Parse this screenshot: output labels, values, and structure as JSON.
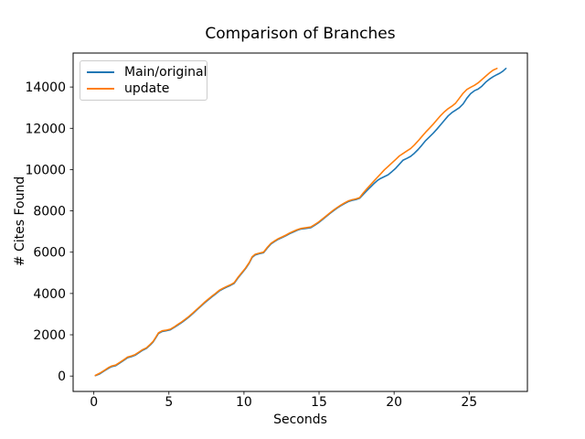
{
  "chart_data": {
    "type": "line",
    "title": "Comparison of Branches",
    "xlabel": "Seconds",
    "ylabel": "# Cites Found",
    "xlim": [
      -1.38,
      28.88
    ],
    "ylim": [
      -745,
      15645
    ],
    "xticks": [
      0,
      5,
      10,
      15,
      20,
      25
    ],
    "yticks": [
      0,
      2000,
      4000,
      6000,
      8000,
      10000,
      12000,
      14000
    ],
    "grid": false,
    "legend_position": "upper left",
    "background_color": "#ffffff",
    "spine_color": "#000000",
    "text_color": "#000000",
    "legend_border_color": "#cccccc",
    "series": [
      {
        "name": "Main/original",
        "color": "#1f77b4",
        "points": [
          [
            0.1,
            20
          ],
          [
            0.4,
            110
          ],
          [
            0.7,
            250
          ],
          [
            1.0,
            390
          ],
          [
            1.2,
            460
          ],
          [
            1.45,
            500
          ],
          [
            1.7,
            620
          ],
          [
            2.0,
            760
          ],
          [
            2.25,
            890
          ],
          [
            2.5,
            940
          ],
          [
            2.75,
            1010
          ],
          [
            3.0,
            1130
          ],
          [
            3.25,
            1250
          ],
          [
            3.5,
            1340
          ],
          [
            3.75,
            1500
          ],
          [
            3.95,
            1650
          ],
          [
            4.1,
            1820
          ],
          [
            4.3,
            2060
          ],
          [
            4.55,
            2160
          ],
          [
            4.8,
            2190
          ],
          [
            5.1,
            2240
          ],
          [
            5.35,
            2350
          ],
          [
            5.6,
            2470
          ],
          [
            5.85,
            2590
          ],
          [
            6.1,
            2730
          ],
          [
            6.35,
            2870
          ],
          [
            6.6,
            3030
          ],
          [
            6.85,
            3200
          ],
          [
            7.1,
            3360
          ],
          [
            7.35,
            3530
          ],
          [
            7.6,
            3680
          ],
          [
            7.85,
            3830
          ],
          [
            8.1,
            3970
          ],
          [
            8.35,
            4120
          ],
          [
            8.6,
            4220
          ],
          [
            8.85,
            4310
          ],
          [
            9.1,
            4390
          ],
          [
            9.35,
            4490
          ],
          [
            9.6,
            4750
          ],
          [
            9.85,
            4970
          ],
          [
            10.1,
            5200
          ],
          [
            10.35,
            5470
          ],
          [
            10.55,
            5750
          ],
          [
            10.75,
            5870
          ],
          [
            11.0,
            5920
          ],
          [
            11.3,
            5970
          ],
          [
            11.55,
            6200
          ],
          [
            11.8,
            6400
          ],
          [
            12.05,
            6520
          ],
          [
            12.3,
            6630
          ],
          [
            12.55,
            6710
          ],
          [
            12.8,
            6800
          ],
          [
            13.05,
            6900
          ],
          [
            13.3,
            6980
          ],
          [
            13.55,
            7060
          ],
          [
            13.8,
            7120
          ],
          [
            14.1,
            7150
          ],
          [
            14.45,
            7190
          ],
          [
            14.7,
            7300
          ],
          [
            14.95,
            7420
          ],
          [
            15.2,
            7560
          ],
          [
            15.45,
            7710
          ],
          [
            15.7,
            7860
          ],
          [
            15.95,
            8000
          ],
          [
            16.2,
            8130
          ],
          [
            16.45,
            8250
          ],
          [
            16.7,
            8360
          ],
          [
            16.95,
            8450
          ],
          [
            17.2,
            8510
          ],
          [
            17.45,
            8550
          ],
          [
            17.7,
            8610
          ],
          [
            17.95,
            8800
          ],
          [
            18.2,
            8990
          ],
          [
            18.45,
            9170
          ],
          [
            18.7,
            9350
          ],
          [
            18.9,
            9480
          ],
          [
            19.1,
            9570
          ],
          [
            19.35,
            9660
          ],
          [
            19.6,
            9750
          ],
          [
            19.85,
            9900
          ],
          [
            20.1,
            10060
          ],
          [
            20.35,
            10260
          ],
          [
            20.6,
            10460
          ],
          [
            20.85,
            10540
          ],
          [
            21.1,
            10640
          ],
          [
            21.35,
            10790
          ],
          [
            21.6,
            10970
          ],
          [
            21.85,
            11180
          ],
          [
            22.1,
            11400
          ],
          [
            22.35,
            11580
          ],
          [
            22.6,
            11760
          ],
          [
            22.85,
            11960
          ],
          [
            23.1,
            12170
          ],
          [
            23.35,
            12390
          ],
          [
            23.6,
            12600
          ],
          [
            23.85,
            12760
          ],
          [
            24.1,
            12880
          ],
          [
            24.35,
            13000
          ],
          [
            24.6,
            13180
          ],
          [
            24.85,
            13460
          ],
          [
            25.1,
            13680
          ],
          [
            25.35,
            13820
          ],
          [
            25.6,
            13900
          ],
          [
            25.85,
            14040
          ],
          [
            26.1,
            14230
          ],
          [
            26.35,
            14380
          ],
          [
            26.6,
            14500
          ],
          [
            26.85,
            14600
          ],
          [
            27.05,
            14670
          ],
          [
            27.25,
            14770
          ],
          [
            27.45,
            14900
          ]
        ]
      },
      {
        "name": "update",
        "color": "#ff7f0e",
        "points": [
          [
            0.1,
            30
          ],
          [
            0.4,
            140
          ],
          [
            0.7,
            280
          ],
          [
            1.0,
            420
          ],
          [
            1.2,
            490
          ],
          [
            1.45,
            530
          ],
          [
            1.7,
            650
          ],
          [
            2.0,
            790
          ],
          [
            2.25,
            920
          ],
          [
            2.5,
            970
          ],
          [
            2.75,
            1040
          ],
          [
            3.0,
            1160
          ],
          [
            3.25,
            1280
          ],
          [
            3.5,
            1370
          ],
          [
            3.75,
            1530
          ],
          [
            3.95,
            1680
          ],
          [
            4.1,
            1850
          ],
          [
            4.3,
            2090
          ],
          [
            4.55,
            2190
          ],
          [
            4.8,
            2220
          ],
          [
            5.1,
            2270
          ],
          [
            5.35,
            2380
          ],
          [
            5.6,
            2500
          ],
          [
            5.85,
            2620
          ],
          [
            6.1,
            2760
          ],
          [
            6.35,
            2900
          ],
          [
            6.6,
            3060
          ],
          [
            6.85,
            3230
          ],
          [
            7.1,
            3390
          ],
          [
            7.35,
            3560
          ],
          [
            7.6,
            3710
          ],
          [
            7.85,
            3860
          ],
          [
            8.1,
            4000
          ],
          [
            8.35,
            4150
          ],
          [
            8.6,
            4250
          ],
          [
            8.85,
            4340
          ],
          [
            9.1,
            4420
          ],
          [
            9.35,
            4520
          ],
          [
            9.6,
            4780
          ],
          [
            9.85,
            5000
          ],
          [
            10.1,
            5230
          ],
          [
            10.35,
            5500
          ],
          [
            10.55,
            5780
          ],
          [
            10.75,
            5900
          ],
          [
            11.0,
            5950
          ],
          [
            11.3,
            6000
          ],
          [
            11.55,
            6230
          ],
          [
            11.8,
            6430
          ],
          [
            12.05,
            6550
          ],
          [
            12.3,
            6660
          ],
          [
            12.55,
            6740
          ],
          [
            12.8,
            6830
          ],
          [
            13.05,
            6930
          ],
          [
            13.3,
            7010
          ],
          [
            13.55,
            7090
          ],
          [
            13.8,
            7150
          ],
          [
            14.1,
            7180
          ],
          [
            14.45,
            7220
          ],
          [
            14.7,
            7330
          ],
          [
            14.95,
            7450
          ],
          [
            15.2,
            7590
          ],
          [
            15.45,
            7740
          ],
          [
            15.7,
            7890
          ],
          [
            15.95,
            8030
          ],
          [
            16.2,
            8160
          ],
          [
            16.45,
            8280
          ],
          [
            16.7,
            8390
          ],
          [
            16.95,
            8480
          ],
          [
            17.2,
            8540
          ],
          [
            17.45,
            8580
          ],
          [
            17.7,
            8640
          ],
          [
            17.95,
            8870
          ],
          [
            18.2,
            9080
          ],
          [
            18.45,
            9280
          ],
          [
            18.65,
            9440
          ],
          [
            18.85,
            9600
          ],
          [
            19.1,
            9790
          ],
          [
            19.35,
            9990
          ],
          [
            19.6,
            10150
          ],
          [
            19.85,
            10320
          ],
          [
            20.1,
            10490
          ],
          [
            20.35,
            10660
          ],
          [
            20.6,
            10780
          ],
          [
            20.85,
            10900
          ],
          [
            21.1,
            11020
          ],
          [
            21.35,
            11190
          ],
          [
            21.6,
            11390
          ],
          [
            21.85,
            11600
          ],
          [
            22.1,
            11810
          ],
          [
            22.35,
            12000
          ],
          [
            22.6,
            12200
          ],
          [
            22.85,
            12410
          ],
          [
            23.1,
            12620
          ],
          [
            23.35,
            12800
          ],
          [
            23.6,
            12950
          ],
          [
            23.85,
            13070
          ],
          [
            24.1,
            13220
          ],
          [
            24.35,
            13460
          ],
          [
            24.6,
            13700
          ],
          [
            24.85,
            13880
          ],
          [
            25.1,
            13990
          ],
          [
            25.35,
            14080
          ],
          [
            25.6,
            14200
          ],
          [
            25.85,
            14360
          ],
          [
            26.1,
            14520
          ],
          [
            26.35,
            14680
          ],
          [
            26.6,
            14820
          ],
          [
            26.85,
            14900
          ]
        ]
      }
    ]
  }
}
